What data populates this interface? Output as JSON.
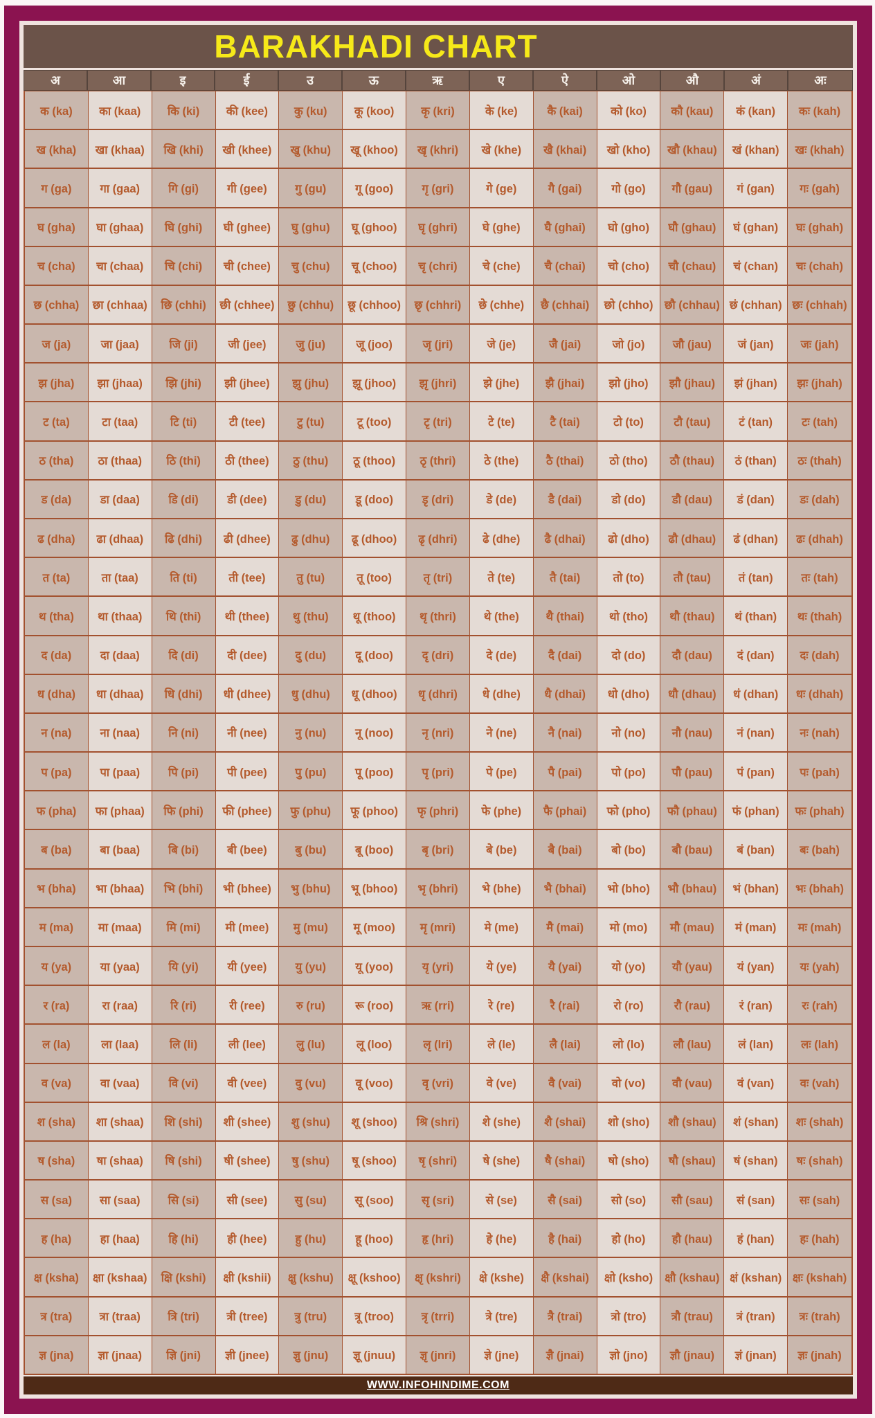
{
  "title": "BARAKHADI CHART",
  "footer": {
    "url": "WWW.INFOHINDIME.COM"
  },
  "colors": {
    "frame_maroon": "#8b1350",
    "inner_bg": "#efe3df",
    "band_brown": "#6b5349",
    "header_brown": "#7d6356",
    "title_yellow": "#f6e919",
    "cell_dark": "#c9b7ad",
    "cell_light": "#e4dbd5",
    "cell_text": "#b45a2c",
    "grid_line": "#a2512f",
    "footer_brown": "#4e2a16"
  },
  "table": {
    "header_vowels": [
      "अ",
      "आ",
      "इ",
      "ई",
      "उ",
      "ऊ",
      "ऋ",
      "ए",
      "ऐ",
      "ओ",
      "औ",
      "अं",
      "अः"
    ],
    "rows": [
      [
        "क (ka)",
        "का (kaa)",
        "कि (ki)",
        "की (kee)",
        "कु (ku)",
        "कू (koo)",
        "कृ (kri)",
        "के (ke)",
        "कै (kai)",
        "को (ko)",
        "कौ (kau)",
        "कं (kan)",
        "कः (kah)"
      ],
      [
        "ख (kha)",
        "खा (khaa)",
        "खि (khi)",
        "खी (khee)",
        "खु (khu)",
        "खू (khoo)",
        "खृ (khri)",
        "खे (khe)",
        "खै (khai)",
        "खो (kho)",
        "खौ (khau)",
        "खं (khan)",
        "खः (khah)"
      ],
      [
        "ग (ga)",
        "गा (gaa)",
        "गि (gi)",
        "गी (gee)",
        "गु (gu)",
        "गू (goo)",
        "गृ (gri)",
        "गे (ge)",
        "गै (gai)",
        "गो (go)",
        "गौ (gau)",
        "गं (gan)",
        "गः (gah)"
      ],
      [
        "घ (gha)",
        "घा (ghaa)",
        "घि (ghi)",
        "घी (ghee)",
        "घु (ghu)",
        "घू (ghoo)",
        "घृ (ghri)",
        "घे (ghe)",
        "घै (ghai)",
        "घो (gho)",
        "घौ (ghau)",
        "घं (ghan)",
        "घः (ghah)"
      ],
      [
        "च (cha)",
        "चा (chaa)",
        "चि (chi)",
        "ची (chee)",
        "चु (chu)",
        "चू (choo)",
        "चृ (chri)",
        "चे (che)",
        "चै (chai)",
        "चो (cho)",
        "चौ (chau)",
        "चं (chan)",
        "चः (chah)"
      ],
      [
        "छ (chha)",
        "छा (chhaa)",
        "छि (chhi)",
        "छी (chhee)",
        "छु (chhu)",
        "छू (chhoo)",
        "छृ (chhri)",
        "छे (chhe)",
        "छै (chhai)",
        "छो (chho)",
        "छौ (chhau)",
        "छं (chhan)",
        "छः (chhah)"
      ],
      [
        "ज (ja)",
        "जा (jaa)",
        "जि (ji)",
        "जी (jee)",
        "जु (ju)",
        "जू (joo)",
        "जृ (jri)",
        "जे (je)",
        "जै (jai)",
        "जो (jo)",
        "जौ (jau)",
        "जं (jan)",
        "जः (jah)"
      ],
      [
        "झ (jha)",
        "झा (jhaa)",
        "झि (jhi)",
        "झी (jhee)",
        "झु (jhu)",
        "झू (jhoo)",
        "झृ (jhri)",
        "झे (jhe)",
        "झै (jhai)",
        "झो (jho)",
        "झौ (jhau)",
        "झं (jhan)",
        "झः (jhah)"
      ],
      [
        "ट (ta)",
        "टा (taa)",
        "टि (ti)",
        "टी (tee)",
        "टु (tu)",
        "टू (too)",
        "टृ (tri)",
        "टे (te)",
        "टै (tai)",
        "टो (to)",
        "टौ (tau)",
        "टं (tan)",
        "टः (tah)"
      ],
      [
        "ठ (tha)",
        "ठा (thaa)",
        "ठि (thi)",
        "ठी (thee)",
        "ठु (thu)",
        "ठू (thoo)",
        "ठृ (thri)",
        "ठे (the)",
        "ठै (thai)",
        "ठो (tho)",
        "ठौ (thau)",
        "ठं (than)",
        "ठः (thah)"
      ],
      [
        "ड (da)",
        "डा (daa)",
        "डि (di)",
        "डी (dee)",
        "डु (du)",
        "डू (doo)",
        "डृ (dri)",
        "डे (de)",
        "डै (dai)",
        "डो (do)",
        "डौ (dau)",
        "डं (dan)",
        "डः (dah)"
      ],
      [
        "ढ (dha)",
        "ढा (dhaa)",
        "ढि (dhi)",
        "ढी (dhee)",
        "ढु (dhu)",
        "ढू (dhoo)",
        "ढृ (dhri)",
        "ढे (dhe)",
        "ढै (dhai)",
        "ढो (dho)",
        "ढौ (dhau)",
        "ढं (dhan)",
        "ढः (dhah)"
      ],
      [
        "त (ta)",
        "ता (taa)",
        "ति (ti)",
        "ती (tee)",
        "तु (tu)",
        "तू (too)",
        "तृ (tri)",
        "ते (te)",
        "तै (tai)",
        "तो (to)",
        "तौ (tau)",
        "तं (tan)",
        "तः (tah)"
      ],
      [
        "थ (tha)",
        "था (thaa)",
        "थि (thi)",
        "थी (thee)",
        "थु (thu)",
        "थू (thoo)",
        "थृ (thri)",
        "थे (the)",
        "थै (thai)",
        "थो (tho)",
        "थौ (thau)",
        "थं (than)",
        "थः (thah)"
      ],
      [
        "द (da)",
        "दा (daa)",
        "दि (di)",
        "दी (dee)",
        "दु (du)",
        "दू (doo)",
        "दृ (dri)",
        "दे (de)",
        "दै (dai)",
        "दो (do)",
        "दौ (dau)",
        "दं (dan)",
        "दः (dah)"
      ],
      [
        "ध (dha)",
        "धा (dhaa)",
        "धि (dhi)",
        "धी (dhee)",
        "धु (dhu)",
        "धू (dhoo)",
        "धृ (dhri)",
        "धे (dhe)",
        "धै (dhai)",
        "धो (dho)",
        "धौ (dhau)",
        "धं (dhan)",
        "धः (dhah)"
      ],
      [
        "न (na)",
        "ना (naa)",
        "नि (ni)",
        "नी (nee)",
        "नु (nu)",
        "नू (noo)",
        "नृ (nri)",
        "ने (ne)",
        "नै (nai)",
        "नो (no)",
        "नौ (nau)",
        "नं (nan)",
        "नः (nah)"
      ],
      [
        "प (pa)",
        "पा (paa)",
        "पि (pi)",
        "पी (pee)",
        "पु (pu)",
        "पू (poo)",
        "पृ (pri)",
        "पे (pe)",
        "पै (pai)",
        "पो (po)",
        "पौ (pau)",
        "पं (pan)",
        "पः (pah)"
      ],
      [
        "फ (pha)",
        "फा (phaa)",
        "फि (phi)",
        "फी (phee)",
        "फु (phu)",
        "फू (phoo)",
        "फृ (phri)",
        "फे (phe)",
        "फै (phai)",
        "फो (pho)",
        "फौ (phau)",
        "फं (phan)",
        "फः (phah)"
      ],
      [
        "ब (ba)",
        "बा (baa)",
        "बि (bi)",
        "बी (bee)",
        "बु (bu)",
        "बू (boo)",
        "बृ (bri)",
        "बे (be)",
        "बै (bai)",
        "बो (bo)",
        "बौ (bau)",
        "बं (ban)",
        "बः (bah)"
      ],
      [
        "भ (bha)",
        "भा (bhaa)",
        "भि (bhi)",
        "भी (bhee)",
        "भु (bhu)",
        "भू (bhoo)",
        "भृ (bhri)",
        "भे (bhe)",
        "भै (bhai)",
        "भो (bho)",
        "भौ (bhau)",
        "भं (bhan)",
        "भः (bhah)"
      ],
      [
        "म (ma)",
        "मा (maa)",
        "मि (mi)",
        "मी (mee)",
        "मु (mu)",
        "मू (moo)",
        "मृ (mri)",
        "मे (me)",
        "मै (mai)",
        "मो (mo)",
        "मौ (mau)",
        "मं (man)",
        "मः (mah)"
      ],
      [
        "य (ya)",
        "या (yaa)",
        "यि (yi)",
        "यी (yee)",
        "यु (yu)",
        "यू (yoo)",
        "यृ (yri)",
        "ये (ye)",
        "यै (yai)",
        "यो (yo)",
        "यौ (yau)",
        "यं (yan)",
        "यः (yah)"
      ],
      [
        "र (ra)",
        "रा (raa)",
        "रि (ri)",
        "री (ree)",
        "रु (ru)",
        "रू (roo)",
        "ऋ (rri)",
        "रे (re)",
        "रै (rai)",
        "रो (ro)",
        "रौ (rau)",
        "रं (ran)",
        "रः (rah)"
      ],
      [
        "ल (la)",
        "ला (laa)",
        "लि (li)",
        "ली (lee)",
        "लु (lu)",
        "लू (loo)",
        "लृ (lri)",
        "ले (le)",
        "लै (lai)",
        "लो (lo)",
        "लौ (lau)",
        "लं (lan)",
        "लः (lah)"
      ],
      [
        "व (va)",
        "वा (vaa)",
        "वि (vi)",
        "वी (vee)",
        "वु (vu)",
        "वू (voo)",
        "वृ (vri)",
        "वे (ve)",
        "वै (vai)",
        "वो (vo)",
        "वौ (vau)",
        "वं (van)",
        "वः (vah)"
      ],
      [
        "श (sha)",
        "शा (shaa)",
        "शि (shi)",
        "शी (shee)",
        "शु (shu)",
        "शू (shoo)",
        "श्रि (shri)",
        "शे (she)",
        "शै (shai)",
        "शो (sho)",
        "शौ (shau)",
        "शं (shan)",
        "शः (shah)"
      ],
      [
        "ष (sha)",
        "षा (shaa)",
        "षि (shi)",
        "षी (shee)",
        "षु (shu)",
        "षू (shoo)",
        "षृ (shri)",
        "षे (she)",
        "षै (shai)",
        "षो (sho)",
        "षौ (shau)",
        "षं (shan)",
        "षः (shah)"
      ],
      [
        "स (sa)",
        "सा (saa)",
        "सि (si)",
        "सी (see)",
        "सु (su)",
        "सू (soo)",
        "सृ (sri)",
        "से (se)",
        "सै (sai)",
        "सो (so)",
        "सौ (sau)",
        "सं (san)",
        "सः (sah)"
      ],
      [
        "ह (ha)",
        "हा (haa)",
        "हि (hi)",
        "ही (hee)",
        "हु (hu)",
        "हू (hoo)",
        "हृ (hri)",
        "हे (he)",
        "है (hai)",
        "हो (ho)",
        "हौ (hau)",
        "हं (han)",
        "हः (hah)"
      ],
      [
        "क्ष (ksha)",
        "क्षा (kshaa)",
        "क्षि (kshi)",
        "क्षी (kshii)",
        "क्षु (kshu)",
        "क्षू (kshoo)",
        "क्षृ (kshri)",
        "क्षे (kshe)",
        "क्षै (kshai)",
        "क्षो (ksho)",
        "क्षौ (kshau)",
        "क्षं (kshan)",
        "क्षः (kshah)"
      ],
      [
        "त्र (tra)",
        "त्रा (traa)",
        "त्रि (tri)",
        "त्री (tree)",
        "त्रु (tru)",
        "त्रू (troo)",
        "त्रृ (trri)",
        "त्रे (tre)",
        "त्रै (trai)",
        "त्रो (tro)",
        "त्रौ (trau)",
        "त्रं (tran)",
        "त्रः (trah)"
      ],
      [
        "ज्ञ (jna)",
        "ज्ञा (jnaa)",
        "ज्ञि (jni)",
        "ज्ञी (jnee)",
        "ज्ञु (jnu)",
        "ज्ञू (jnuu)",
        "ज्ञृ (jnri)",
        "ज्ञे (jne)",
        "ज्ञै (jnai)",
        "ज्ञो (jno)",
        "ज्ञौ (jnau)",
        "ज्ञं (jnan)",
        "ज्ञः (jnah)"
      ]
    ]
  }
}
